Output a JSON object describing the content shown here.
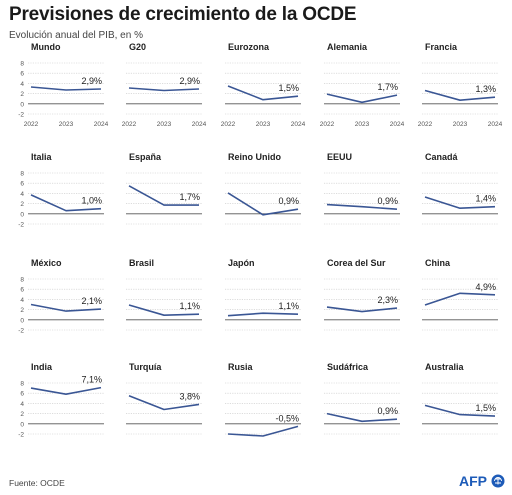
{
  "header": {
    "title": "Previsiones de crecimiento de la OCDE",
    "subtitle": "Evolución anual del PIB, en %"
  },
  "footer": {
    "source": "Fuente: OCDE",
    "logo_text": "AFP"
  },
  "colors": {
    "line": "#3a5694",
    "grid": "#c8c8c8",
    "zero_line": "#555555",
    "text": "#222222",
    "logo_blue": "#1d5bb8"
  },
  "chart_data": [
    {
      "type": "line",
      "title": "Mundo",
      "x": [
        "2022",
        "2023",
        "2024"
      ],
      "values": [
        3.3,
        2.7,
        2.9
      ],
      "label": "2,9%",
      "ylim": [
        -2,
        8
      ],
      "yticks": [
        "8",
        "6",
        "4",
        "2",
        "0",
        "-2"
      ],
      "show_xticks": true
    },
    {
      "type": "line",
      "title": "G20",
      "x": [
        "2022",
        "2023",
        "2024"
      ],
      "values": [
        3.1,
        2.6,
        2.9
      ],
      "label": "2,9%",
      "ylim": [
        -2,
        8
      ],
      "show_xticks": true
    },
    {
      "type": "line",
      "title": "Eurozona",
      "x": [
        "2022",
        "2023",
        "2024"
      ],
      "values": [
        3.5,
        0.8,
        1.5
      ],
      "label": "1,5%",
      "ylim": [
        -2,
        8
      ],
      "show_xticks": true
    },
    {
      "type": "line",
      "title": "Alemania",
      "x": [
        "2022",
        "2023",
        "2024"
      ],
      "values": [
        1.9,
        0.3,
        1.7
      ],
      "label": "1,7%",
      "ylim": [
        -2,
        8
      ],
      "show_xticks": true
    },
    {
      "type": "line",
      "title": "Francia",
      "x": [
        "2022",
        "2023",
        "2024"
      ],
      "values": [
        2.6,
        0.7,
        1.3
      ],
      "label": "1,3%",
      "ylim": [
        -2,
        8
      ],
      "show_xticks": true
    },
    {
      "type": "line",
      "title": "Italia",
      "x": [
        "2022",
        "2023",
        "2024"
      ],
      "values": [
        3.7,
        0.6,
        1.0
      ],
      "label": "1,0%",
      "ylim": [
        -2,
        8
      ],
      "yticks": [
        "8",
        "6",
        "4",
        "2",
        "0",
        "-2"
      ]
    },
    {
      "type": "line",
      "title": "España",
      "x": [
        "2022",
        "2023",
        "2024"
      ],
      "values": [
        5.5,
        1.7,
        1.7
      ],
      "label": "1,7%",
      "ylim": [
        -2,
        8
      ]
    },
    {
      "type": "line",
      "title": "Reino Unido",
      "x": [
        "2022",
        "2023",
        "2024"
      ],
      "values": [
        4.1,
        -0.2,
        0.9
      ],
      "label": "0,9%",
      "ylim": [
        -2,
        8
      ]
    },
    {
      "type": "line",
      "title": "EEUU",
      "x": [
        "2022",
        "2023",
        "2024"
      ],
      "values": [
        1.8,
        1.4,
        0.9
      ],
      "label": "0,9%",
      "ylim": [
        -2,
        8
      ]
    },
    {
      "type": "line",
      "title": "Canadá",
      "x": [
        "2022",
        "2023",
        "2024"
      ],
      "values": [
        3.3,
        1.1,
        1.4
      ],
      "label": "1,4%",
      "ylim": [
        -2,
        8
      ]
    },
    {
      "type": "line",
      "title": "México",
      "x": [
        "2022",
        "2023",
        "2024"
      ],
      "values": [
        3.0,
        1.7,
        2.1
      ],
      "label": "2,1%",
      "ylim": [
        -2,
        8
      ],
      "yticks": [
        "8",
        "6",
        "4",
        "2",
        "0",
        "-2"
      ]
    },
    {
      "type": "line",
      "title": "Brasil",
      "x": [
        "2022",
        "2023",
        "2024"
      ],
      "values": [
        2.9,
        0.9,
        1.1
      ],
      "label": "1,1%",
      "ylim": [
        -2,
        8
      ]
    },
    {
      "type": "line",
      "title": "Japón",
      "x": [
        "2022",
        "2023",
        "2024"
      ],
      "values": [
        0.8,
        1.3,
        1.1
      ],
      "label": "1,1%",
      "ylim": [
        -2,
        8
      ]
    },
    {
      "type": "line",
      "title": "Corea del Sur",
      "x": [
        "2022",
        "2023",
        "2024"
      ],
      "values": [
        2.5,
        1.6,
        2.3
      ],
      "label": "2,3%",
      "ylim": [
        -2,
        8
      ]
    },
    {
      "type": "line",
      "title": "China",
      "x": [
        "2022",
        "2023",
        "2024"
      ],
      "values": [
        2.9,
        5.2,
        4.9
      ],
      "label": "4,9%",
      "ylim": [
        -2,
        8
      ]
    },
    {
      "type": "line",
      "title": "India",
      "x": [
        "2022",
        "2023",
        "2024"
      ],
      "values": [
        7.0,
        5.8,
        7.1
      ],
      "label": "7,1%",
      "ylim": [
        -2,
        8
      ],
      "yticks": [
        "8",
        "6",
        "4",
        "2",
        "0",
        "-2"
      ]
    },
    {
      "type": "line",
      "title": "Turquía",
      "x": [
        "2022",
        "2023",
        "2024"
      ],
      "values": [
        5.5,
        2.8,
        3.8
      ],
      "label": "3,8%",
      "ylim": [
        -2,
        8
      ]
    },
    {
      "type": "line",
      "title": "Rusia",
      "x": [
        "2022",
        "2023",
        "2024"
      ],
      "values": [
        -2.0,
        -2.4,
        -0.5
      ],
      "label": "-0,5%",
      "ylim": [
        -2,
        8
      ]
    },
    {
      "type": "line",
      "title": "Sudáfrica",
      "x": [
        "2022",
        "2023",
        "2024"
      ],
      "values": [
        2.0,
        0.5,
        0.9
      ],
      "label": "0,9%",
      "ylim": [
        -2,
        8
      ]
    },
    {
      "type": "line",
      "title": "Australia",
      "x": [
        "2022",
        "2023",
        "2024"
      ],
      "values": [
        3.6,
        1.8,
        1.5
      ],
      "label": "1,5%",
      "ylim": [
        -2,
        8
      ]
    }
  ]
}
